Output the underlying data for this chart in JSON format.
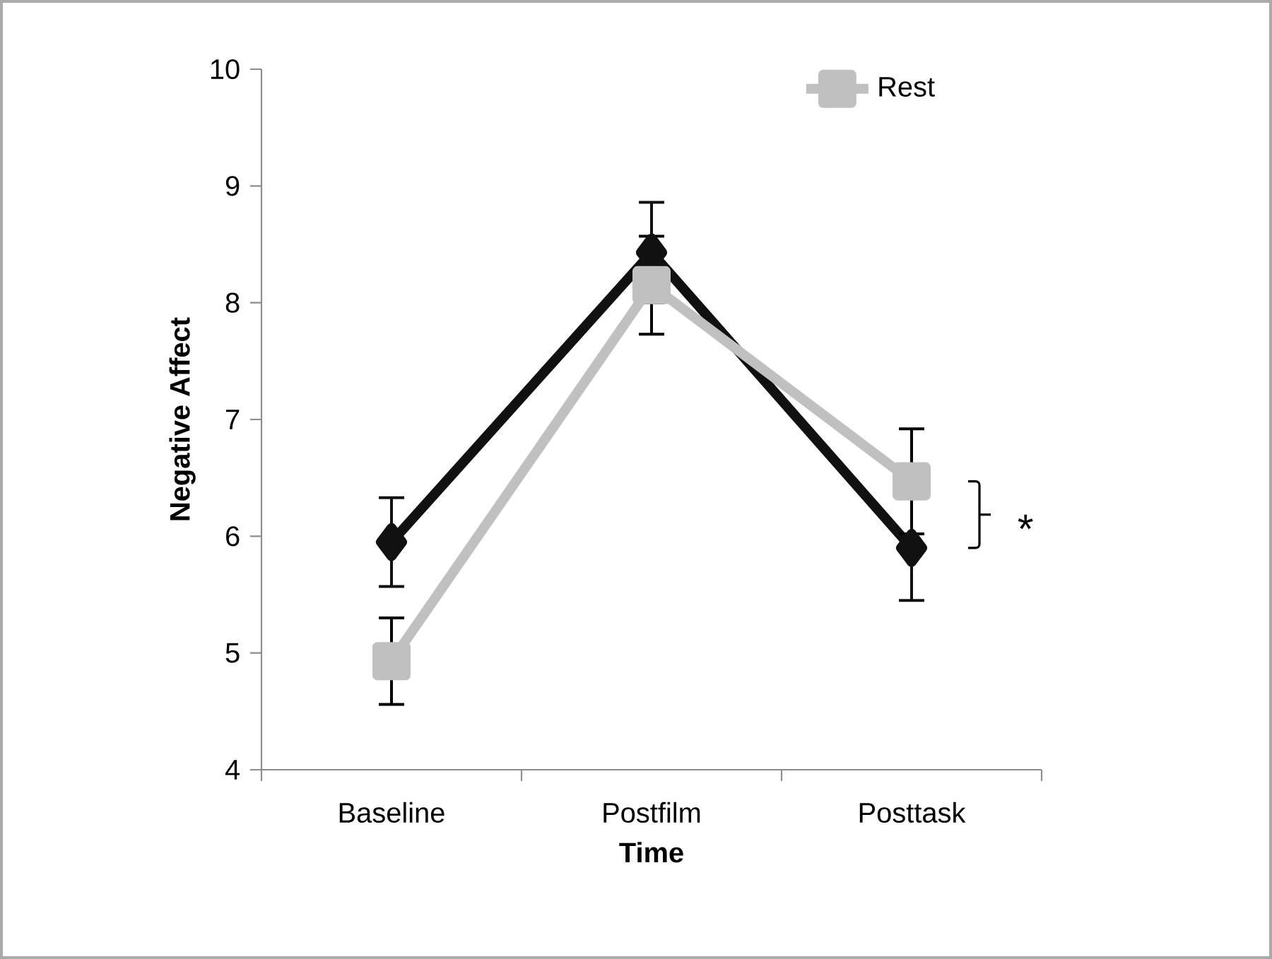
{
  "chart_data": {
    "type": "line",
    "xlabel": "Time",
    "ylabel": "Negative Affect",
    "categories": [
      "Baseline",
      "Postfilm",
      "Posttask"
    ],
    "ylim": [
      4,
      10
    ],
    "yticks": [
      4,
      5,
      6,
      7,
      8,
      9,
      10
    ],
    "legend": "top right",
    "annotations": [
      {
        "text": "*",
        "x": "Posttask",
        "y": 6.1
      }
    ],
    "series": [
      {
        "color": "#111111",
        "marker": "diamond",
        "values": [
          5.95,
          8.43,
          5.9
        ],
        "errors": [
          0.38,
          0.43,
          0.45
        ]
      },
      {
        "name": "Rest",
        "color": "#c0c0c0",
        "marker": "square",
        "values": [
          4.93,
          8.15,
          6.47
        ],
        "errors": [
          0.37,
          0.42,
          0.45
        ]
      }
    ]
  }
}
